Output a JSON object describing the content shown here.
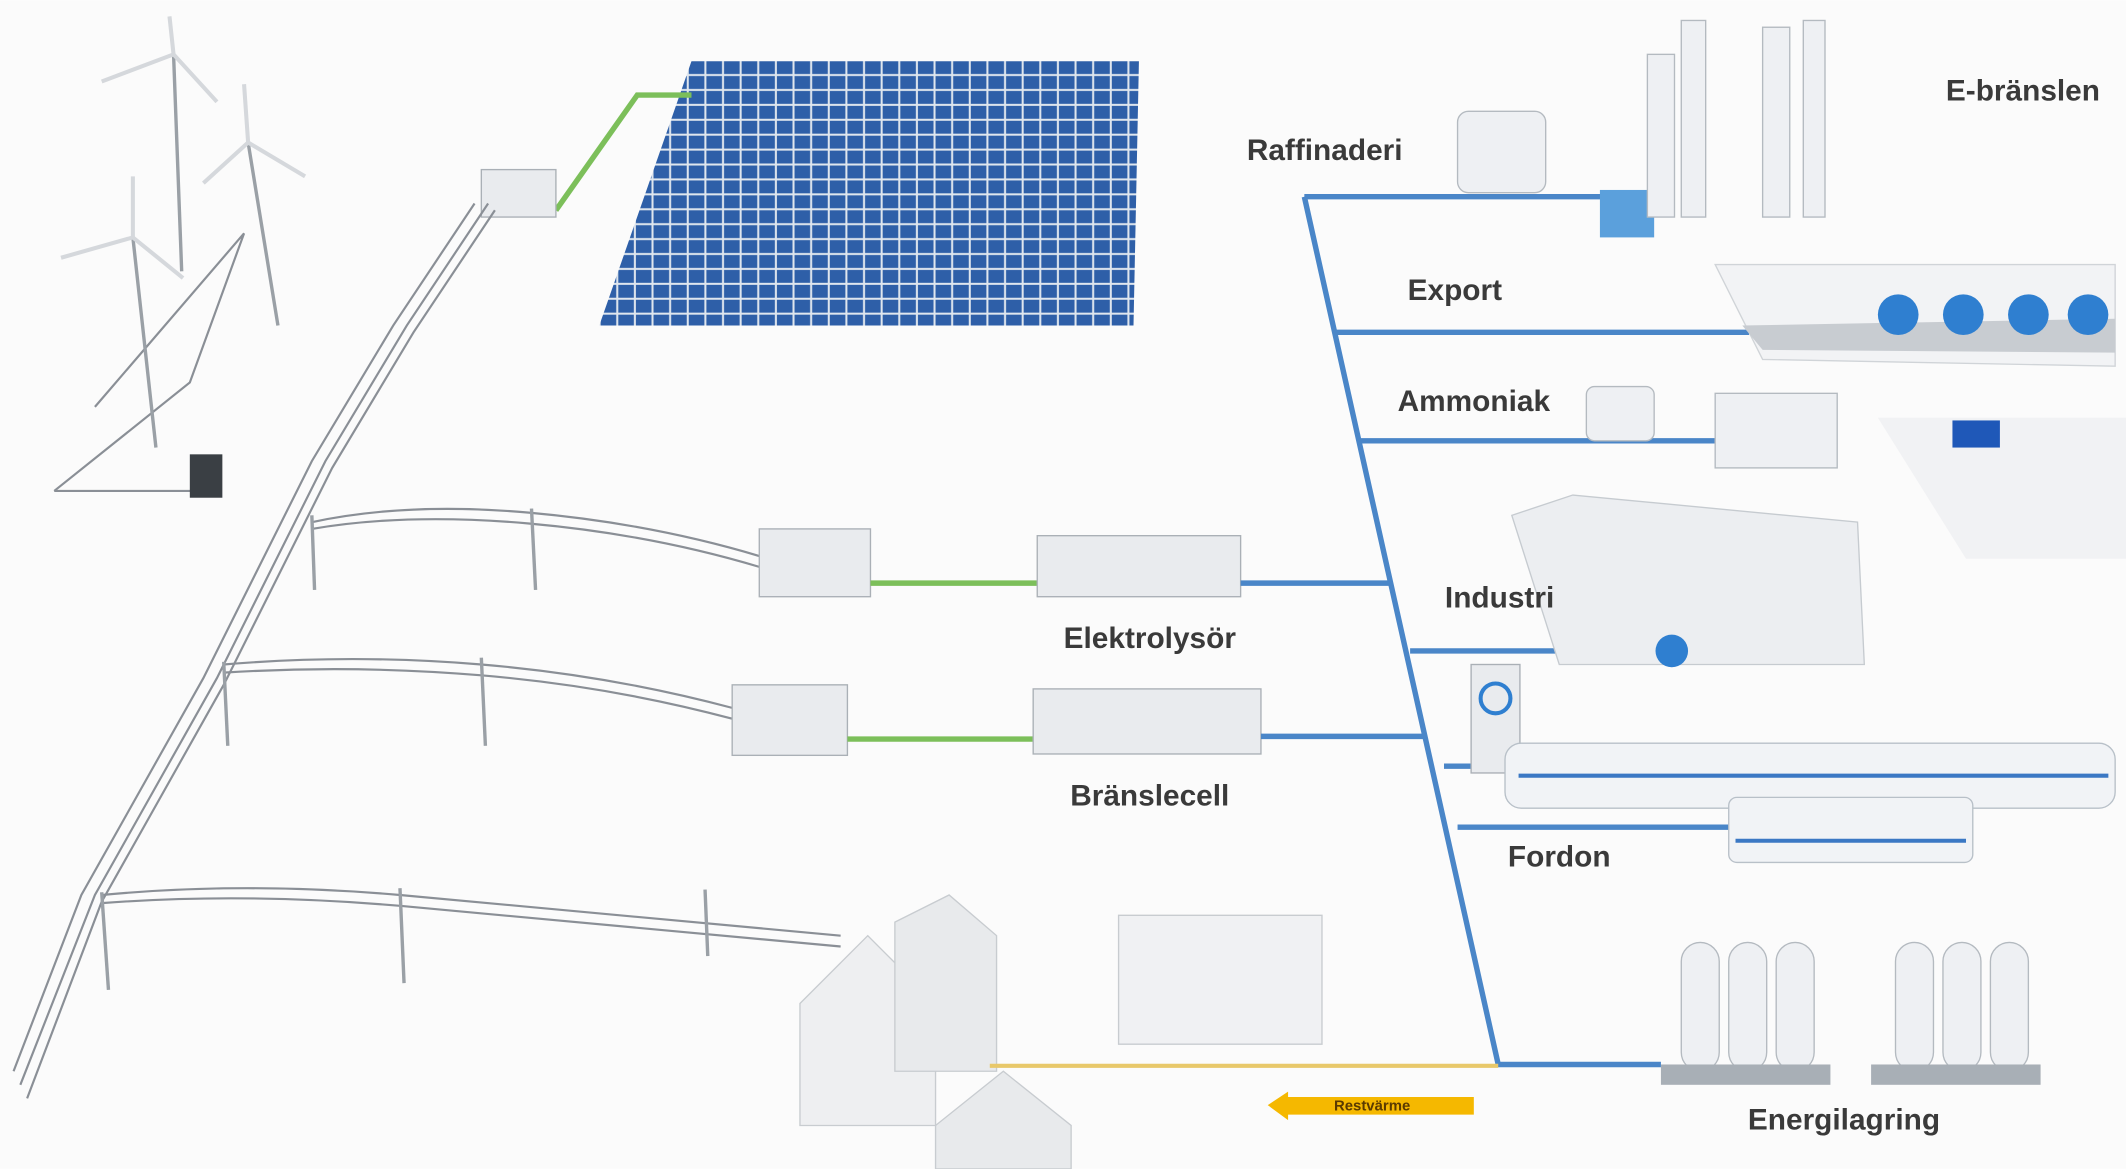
{
  "labels": {
    "e_fuels": "E-bränslen",
    "refinery": "Raffinaderi",
    "export": "Export",
    "ammonia": "Ammoniak",
    "industry": "Industri",
    "electrolyser": "Elektrolysör",
    "fuel_cell": "Bränslecell",
    "vehicles": "Fordon",
    "energy_storage": "Energilagring",
    "waste_heat": "Restvärme"
  }
}
